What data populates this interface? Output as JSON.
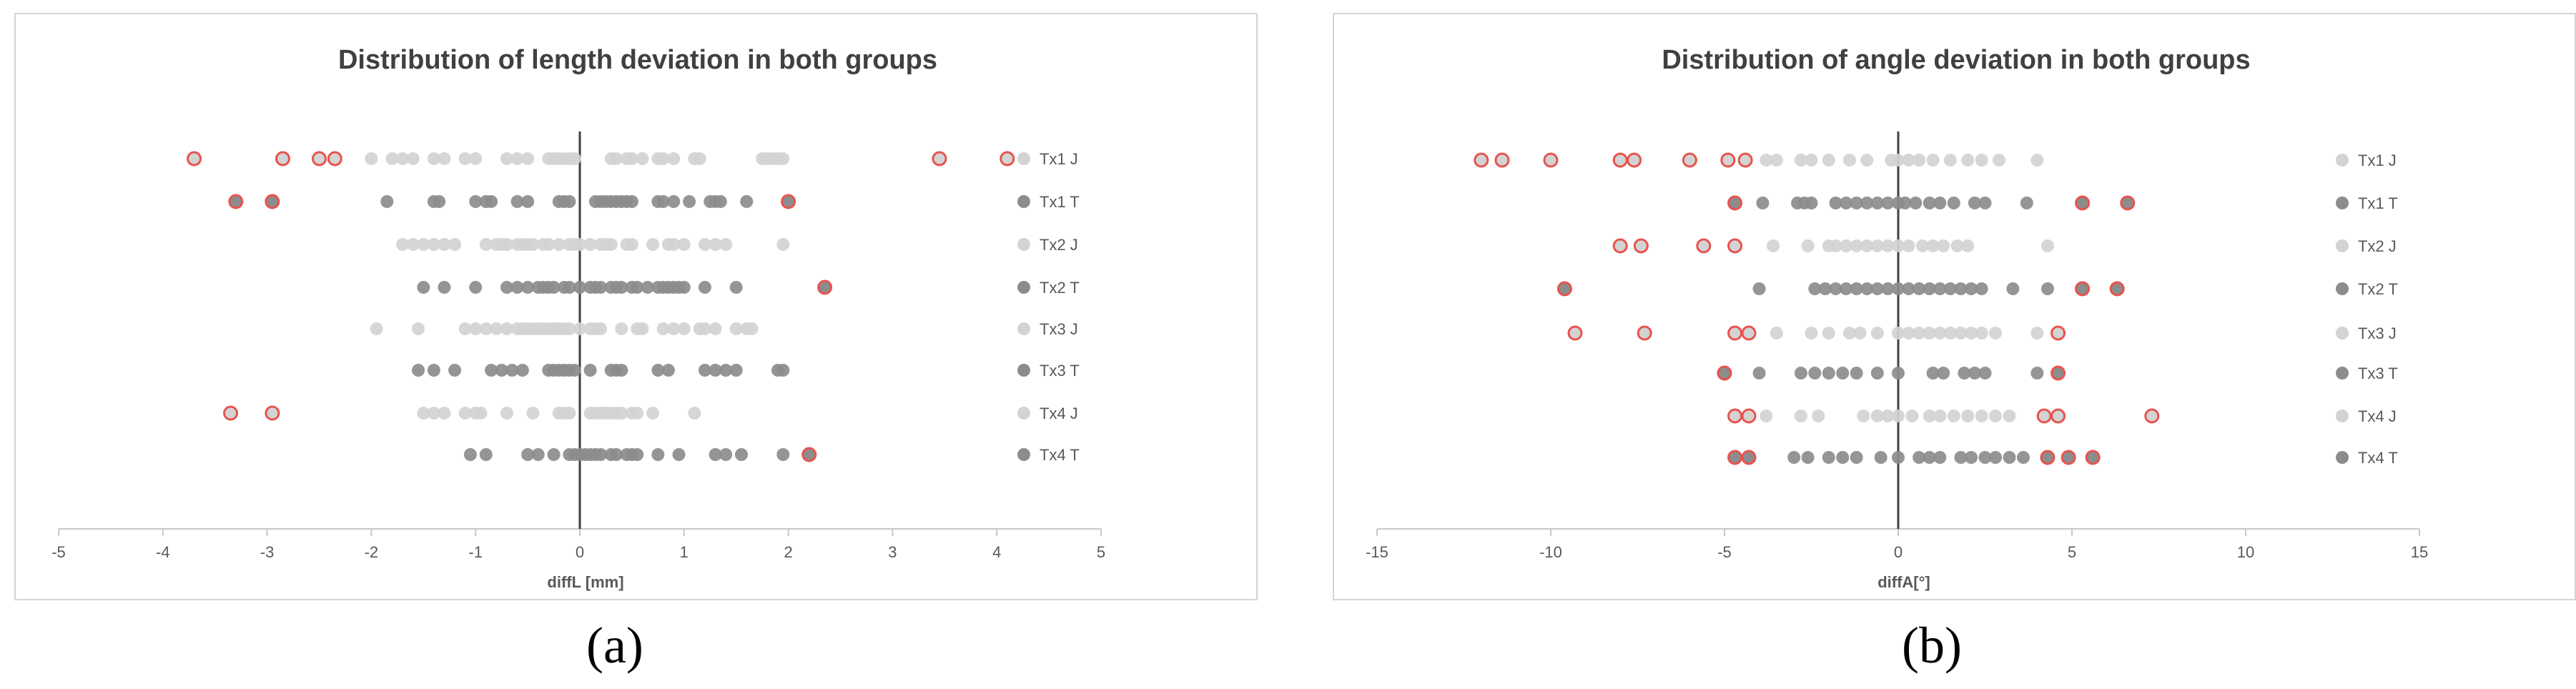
{
  "colors": {
    "J": "#d3d3d3",
    "T": "#8c8c8c",
    "outlier": "#e8534e",
    "axis": "#404040",
    "frame": "#d4d4d4"
  },
  "captions": {
    "a": "(a)",
    "b": "(b)"
  },
  "chart_data": [
    {
      "type": "scatter",
      "title": "Distribution of length deviation in both groups",
      "xlabel": "diffL [mm]",
      "ylabel": "",
      "xlim": [
        -5,
        5
      ],
      "xticks": [
        -5,
        -4,
        -3,
        -2,
        -1,
        0,
        1,
        2,
        3,
        4,
        5
      ],
      "legend": "right",
      "grid": false,
      "series": [
        {
          "name": "Tx1 J",
          "group": "J",
          "values": [
            -2.0,
            -1.8,
            -1.7,
            -1.6,
            -1.4,
            -1.3,
            -1.1,
            -1.0,
            -0.7,
            -0.6,
            -0.5,
            -0.3,
            -0.25,
            -0.2,
            -0.15,
            -0.1,
            -0.05,
            0.3,
            0.35,
            0.45,
            0.5,
            0.6,
            0.75,
            0.8,
            0.9,
            1.1,
            1.15,
            1.75,
            1.8,
            1.85,
            1.9,
            1.95
          ],
          "outliers": [
            -3.7,
            -2.85,
            -2.5,
            -2.35,
            3.45,
            4.1
          ]
        },
        {
          "name": "Tx1 T",
          "group": "T",
          "values": [
            -1.85,
            -1.4,
            -1.35,
            -1.0,
            -0.9,
            -0.85,
            -0.6,
            -0.5,
            -0.2,
            -0.15,
            -0.1,
            0.15,
            0.2,
            0.25,
            0.3,
            0.35,
            0.4,
            0.45,
            0.5,
            0.75,
            0.8,
            0.9,
            1.05,
            1.25,
            1.3,
            1.35,
            1.6
          ],
          "outliers": [
            -3.3,
            -2.95,
            2.0
          ]
        },
        {
          "name": "Tx2 J",
          "group": "J",
          "values": [
            -1.7,
            -1.6,
            -1.5,
            -1.4,
            -1.3,
            -1.2,
            -0.9,
            -0.8,
            -0.75,
            -0.7,
            -0.6,
            -0.55,
            -0.5,
            -0.45,
            -0.35,
            -0.3,
            -0.2,
            -0.1,
            -0.05,
            0.0,
            0.1,
            0.2,
            0.25,
            0.3,
            0.45,
            0.5,
            0.7,
            0.85,
            0.9,
            1.0,
            1.2,
            1.3,
            1.4,
            1.95
          ],
          "outliers": []
        },
        {
          "name": "Tx2 T",
          "group": "T",
          "values": [
            -1.5,
            -1.3,
            -1.0,
            -0.7,
            -0.6,
            -0.5,
            -0.4,
            -0.35,
            -0.3,
            -0.25,
            -0.15,
            -0.1,
            0.0,
            0.1,
            0.15,
            0.2,
            0.3,
            0.35,
            0.4,
            0.5,
            0.55,
            0.65,
            0.75,
            0.8,
            0.85,
            0.9,
            0.95,
            1.0,
            1.2,
            1.5
          ],
          "outliers": [
            2.35
          ]
        },
        {
          "name": "Tx3 J",
          "group": "J",
          "values": [
            -1.95,
            -1.55,
            -1.1,
            -1.0,
            -0.9,
            -0.8,
            -0.7,
            -0.6,
            -0.55,
            -0.5,
            -0.45,
            -0.4,
            -0.35,
            -0.3,
            -0.25,
            -0.2,
            -0.15,
            -0.1,
            0.0,
            0.1,
            0.15,
            0.2,
            0.4,
            0.55,
            0.6,
            0.8,
            0.9,
            1.0,
            1.15,
            1.2,
            1.3,
            1.5,
            1.6,
            1.65
          ],
          "outliers": []
        },
        {
          "name": "Tx3 T",
          "group": "T",
          "values": [
            -1.55,
            -1.4,
            -1.2,
            -0.85,
            -0.75,
            -0.65,
            -0.55,
            -0.3,
            -0.25,
            -0.2,
            -0.15,
            -0.1,
            -0.05,
            0.1,
            0.3,
            0.35,
            0.4,
            0.75,
            0.85,
            1.2,
            1.3,
            1.4,
            1.5,
            1.9,
            1.95
          ],
          "outliers": []
        },
        {
          "name": "Tx4 J",
          "group": "J",
          "values": [
            -1.5,
            -1.4,
            -1.3,
            -1.1,
            -1.0,
            -0.95,
            -0.7,
            -0.45,
            -0.2,
            -0.15,
            -0.1,
            0.1,
            0.15,
            0.2,
            0.25,
            0.3,
            0.35,
            0.4,
            0.5,
            0.55,
            0.7,
            1.1
          ],
          "outliers": [
            -3.35,
            -2.95
          ]
        },
        {
          "name": "Tx4 T",
          "group": "T",
          "values": [
            -1.05,
            -0.9,
            -0.5,
            -0.4,
            -0.25,
            -0.1,
            -0.05,
            0.0,
            0.05,
            0.1,
            0.15,
            0.2,
            0.3,
            0.35,
            0.45,
            0.5,
            0.55,
            0.75,
            0.95,
            1.3,
            1.4,
            1.55,
            1.95
          ],
          "outliers": [
            2.2
          ]
        }
      ]
    },
    {
      "type": "scatter",
      "title": "Distribution of angle deviation in both groups",
      "xlabel": "diffA[°]",
      "ylabel": "",
      "xlim": [
        -15,
        15
      ],
      "xticks": [
        -15,
        -10,
        -5,
        0,
        5,
        10,
        15
      ],
      "legend": "right",
      "grid": false,
      "series": [
        {
          "name": "Tx1 J",
          "group": "J",
          "values": [
            -3.8,
            -3.5,
            -2.8,
            -2.5,
            -2.0,
            -1.4,
            -0.9,
            -0.2,
            0.0,
            0.3,
            0.6,
            1.0,
            1.5,
            2.0,
            2.4,
            2.9,
            4.0
          ],
          "outliers": [
            -12.0,
            -11.4,
            -10.0,
            -8.0,
            -7.6,
            -6.0,
            -4.9,
            -4.4
          ]
        },
        {
          "name": "Tx1 T",
          "group": "T",
          "values": [
            -3.9,
            -2.9,
            -2.7,
            -2.5,
            -1.8,
            -1.5,
            -1.2,
            -0.9,
            -0.6,
            -0.3,
            0.0,
            0.2,
            0.5,
            0.9,
            1.2,
            1.6,
            2.2,
            2.5,
            3.7
          ],
          "outliers": [
            -4.7,
            5.3,
            6.6
          ]
        },
        {
          "name": "Tx2 J",
          "group": "J",
          "values": [
            -3.6,
            -2.6,
            -2.0,
            -1.8,
            -1.5,
            -1.2,
            -0.9,
            -0.6,
            -0.3,
            0.0,
            0.3,
            0.7,
            1.0,
            1.3,
            1.7,
            2.0,
            4.3
          ],
          "outliers": [
            -8.0,
            -7.4,
            -5.6,
            -4.7
          ]
        },
        {
          "name": "Tx2 T",
          "group": "T",
          "values": [
            -4.0,
            -2.4,
            -2.1,
            -1.8,
            -1.5,
            -1.2,
            -0.9,
            -0.6,
            -0.3,
            0.0,
            0.3,
            0.6,
            0.9,
            1.2,
            1.5,
            1.8,
            2.1,
            2.4,
            3.3,
            4.3
          ],
          "outliers": [
            -9.6,
            5.3,
            6.3
          ]
        },
        {
          "name": "Tx3 J",
          "group": "J",
          "values": [
            -3.5,
            -2.5,
            -2.0,
            -1.4,
            -1.1,
            -0.6,
            0.0,
            0.3,
            0.6,
            0.9,
            1.2,
            1.5,
            1.8,
            2.1,
            2.4,
            2.8,
            4.0
          ],
          "outliers": [
            -9.3,
            -7.3,
            -4.7,
            -4.3,
            4.6
          ]
        },
        {
          "name": "Tx3 T",
          "group": "T",
          "values": [
            -4.0,
            -2.8,
            -2.4,
            -2.0,
            -1.6,
            -1.2,
            -0.6,
            0.0,
            1.0,
            1.3,
            1.9,
            2.2,
            2.5,
            4.0
          ],
          "outliers": [
            -5.0,
            4.6
          ]
        },
        {
          "name": "Tx4 J",
          "group": "J",
          "values": [
            -3.8,
            -2.8,
            -2.3,
            -1.0,
            -0.6,
            -0.3,
            0.0,
            0.4,
            0.9,
            1.2,
            1.6,
            2.0,
            2.4,
            2.8,
            3.2
          ],
          "outliers": [
            -4.7,
            -4.3,
            4.2,
            4.6,
            7.3
          ]
        },
        {
          "name": "Tx4 T",
          "group": "T",
          "values": [
            -3.0,
            -2.6,
            -2.0,
            -1.6,
            -1.2,
            -0.5,
            0.0,
            0.6,
            0.9,
            1.2,
            1.8,
            2.1,
            2.5,
            2.8,
            3.2,
            3.6
          ],
          "outliers": [
            -4.7,
            -4.3,
            4.3,
            4.9,
            5.6
          ]
        }
      ]
    }
  ]
}
